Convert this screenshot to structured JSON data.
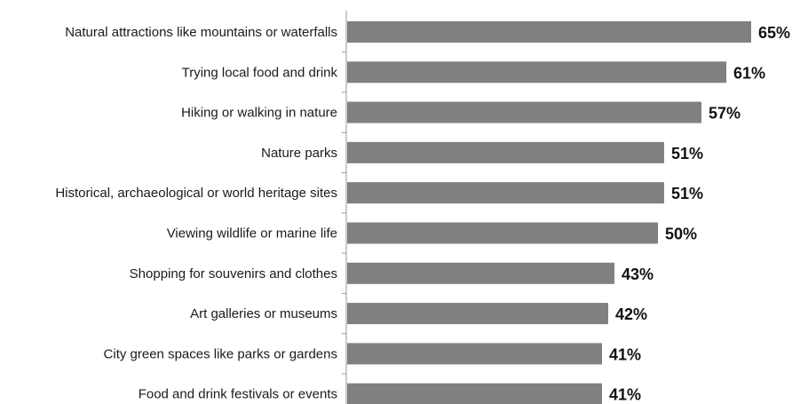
{
  "chart_data": {
    "type": "bar",
    "orientation": "horizontal",
    "categories": [
      "Natural attractions like mountains or waterfalls",
      "Trying local food and drink",
      "Hiking or walking in nature",
      "Nature parks",
      "Historical, archaeological or world heritage sites",
      "Viewing wildlife or marine life",
      "Shopping for souvenirs and clothes",
      "Art galleries or museums",
      "City green spaces like parks or gardens",
      "Food and drink festivals or events"
    ],
    "values": [
      65,
      61,
      57,
      51,
      51,
      50,
      43,
      42,
      41,
      41
    ],
    "value_labels": [
      "65%",
      "61%",
      "57%",
      "51%",
      "51%",
      "50%",
      "43%",
      "42%",
      "41%",
      "41%"
    ],
    "title": "",
    "xlabel": "",
    "ylabel": "",
    "grid": false,
    "colors": {
      "bar": "#808080",
      "axis": "#9a9a9a"
    }
  }
}
